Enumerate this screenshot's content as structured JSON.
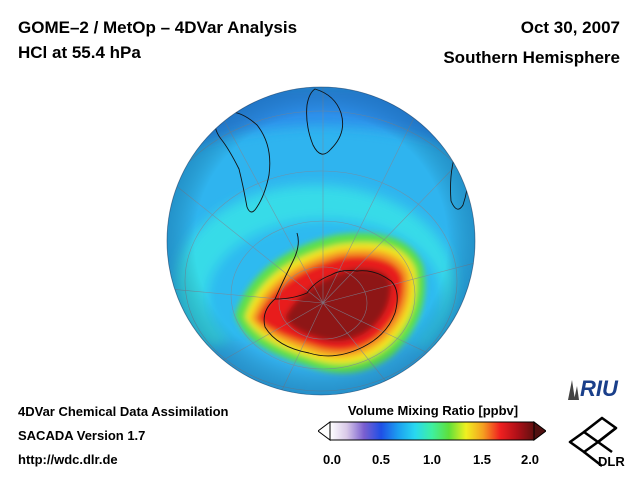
{
  "header": {
    "title_line1": "GOME–2 / MetOp – 4DVar Analysis",
    "title_line2": "HCl at 55.4 hPa",
    "date": "Oct 30, 2007",
    "hemisphere": "Southern Hemisphere"
  },
  "footer": {
    "line1": "4DVar Chemical Data Assimilation",
    "line2": "SACADA Version 1.7",
    "line3": "http://wdc.dlr.de"
  },
  "colorbar": {
    "title": "Volume Mixing Ratio [ppbv]",
    "ticks": [
      "0.0",
      "0.5",
      "1.0",
      "1.5",
      "2.0"
    ],
    "colors": [
      "#ffffff",
      "#d8c8e8",
      "#7a5fd0",
      "#1f4fe6",
      "#1c9ef0",
      "#28d8f0",
      "#3ef0a0",
      "#5fe03a",
      "#f0f020",
      "#f5a020",
      "#f02020",
      "#b01018",
      "#601010"
    ]
  },
  "logos": {
    "riu_text": "RIU",
    "dlr_text": "DLR"
  },
  "colors": {
    "background": "#ffffff",
    "globe_base": "#30b8f0",
    "ring_high": "#3ef0e0",
    "vortex_green": "#58e050",
    "vortex_yellow": "#f0e020",
    "vortex_red": "#e81c1c",
    "vortex_core": "#901818"
  }
}
